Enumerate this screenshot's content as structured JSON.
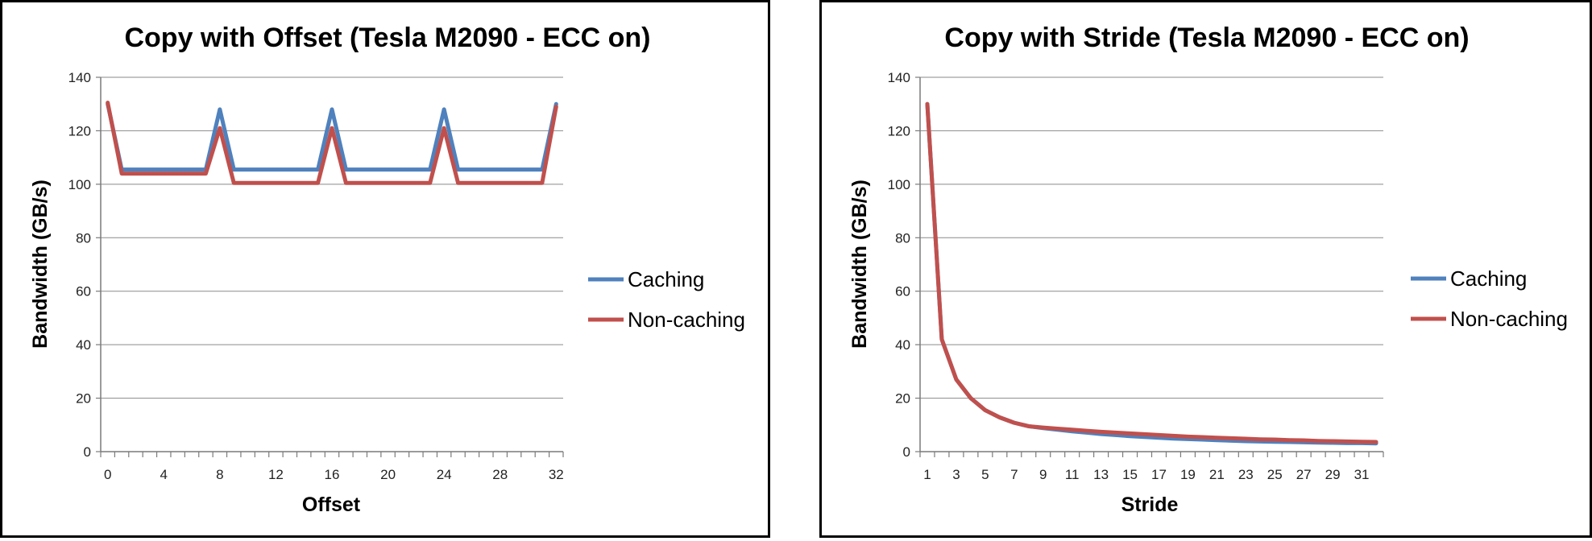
{
  "chart_data": [
    {
      "type": "line",
      "title": "Copy with Offset (Tesla M2090 - ECC on)",
      "xlabel": "Offset",
      "ylabel": "Bandwidth (GB/s)",
      "xlim": [
        0,
        32
      ],
      "ylim": [
        0,
        140
      ],
      "y_ticks": [
        0,
        20,
        40,
        60,
        80,
        100,
        120,
        140
      ],
      "x_tick_labels": [
        "0",
        "4",
        "8",
        "12",
        "16",
        "20",
        "24",
        "28",
        "32"
      ],
      "x_tick_values": [
        0,
        4,
        8,
        12,
        16,
        20,
        24,
        28,
        32
      ],
      "x": [
        0,
        1,
        2,
        3,
        4,
        5,
        6,
        7,
        8,
        9,
        10,
        11,
        12,
        13,
        14,
        15,
        16,
        17,
        18,
        19,
        20,
        21,
        22,
        23,
        24,
        25,
        26,
        27,
        28,
        29,
        30,
        31,
        32
      ],
      "grid": true,
      "legend_position": "right",
      "series": [
        {
          "name": "Caching",
          "color": "#4f81bd",
          "values": [
            130,
            105.5,
            105.5,
            105.5,
            105.5,
            105.5,
            105.5,
            105.5,
            128,
            105.5,
            105.5,
            105.5,
            105.5,
            105.5,
            105.5,
            105.5,
            128,
            105.5,
            105.5,
            105.5,
            105.5,
            105.5,
            105.5,
            105.5,
            128,
            105.5,
            105.5,
            105.5,
            105.5,
            105.5,
            105.5,
            105.5,
            130
          ]
        },
        {
          "name": "Non-caching",
          "color": "#c0504d",
          "values": [
            130.5,
            104,
            104,
            104,
            104,
            104,
            104,
            104,
            121,
            100.5,
            100.5,
            100.5,
            100.5,
            100.5,
            100.5,
            100.5,
            121,
            100.5,
            100.5,
            100.5,
            100.5,
            100.5,
            100.5,
            100.5,
            121,
            100.5,
            100.5,
            100.5,
            100.5,
            100.5,
            100.5,
            100.5,
            129
          ]
        }
      ]
    },
    {
      "type": "line",
      "title": "Copy with Stride (Tesla M2090 - ECC on)",
      "xlabel": "Stride",
      "ylabel": "Bandwidth (GB/s)",
      "xlim": [
        1,
        32
      ],
      "ylim": [
        0,
        140
      ],
      "y_ticks": [
        0,
        20,
        40,
        60,
        80,
        100,
        120,
        140
      ],
      "x_tick_labels": [
        "1",
        "3",
        "5",
        "7",
        "9",
        "11",
        "13",
        "15",
        "17",
        "19",
        "21",
        "23",
        "25",
        "27",
        "29",
        "31"
      ],
      "x_tick_values": [
        1,
        3,
        5,
        7,
        9,
        11,
        13,
        15,
        17,
        19,
        21,
        23,
        25,
        27,
        29,
        31
      ],
      "x": [
        1,
        2,
        3,
        4,
        5,
        6,
        7,
        8,
        9,
        10,
        11,
        12,
        13,
        14,
        15,
        16,
        17,
        18,
        19,
        20,
        21,
        22,
        23,
        24,
        25,
        26,
        27,
        28,
        29,
        30,
        31,
        32
      ],
      "grid": true,
      "legend_position": "right",
      "series": [
        {
          "name": "Caching",
          "color": "#4f81bd",
          "values": [
            130,
            42,
            27,
            20,
            15.5,
            12.8,
            10.8,
            9.5,
            8.8,
            8.2,
            7.6,
            7.1,
            6.6,
            6.2,
            5.8,
            5.5,
            5.2,
            4.9,
            4.7,
            4.5,
            4.3,
            4.1,
            3.9,
            3.8,
            3.7,
            3.6,
            3.5,
            3.4,
            3.3,
            3.2,
            3.2,
            3.1
          ]
        },
        {
          "name": "Non-caching",
          "color": "#c0504d",
          "values": [
            130,
            42,
            27,
            20,
            15.5,
            12.8,
            10.8,
            9.5,
            9,
            8.6,
            8.2,
            7.8,
            7.4,
            7.1,
            6.8,
            6.5,
            6.2,
            5.9,
            5.6,
            5.4,
            5.2,
            5,
            4.8,
            4.6,
            4.5,
            4.3,
            4.2,
            4.0,
            3.9,
            3.8,
            3.7,
            3.6
          ]
        }
      ]
    }
  ]
}
